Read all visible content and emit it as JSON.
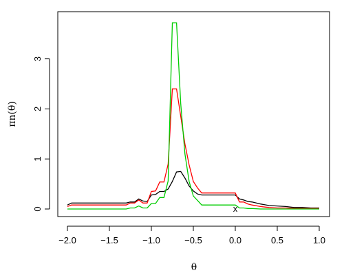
{
  "chart_data": {
    "type": "line",
    "title": "",
    "xlabel": "θ",
    "ylabel": "πn(θ)",
    "xlim": [
      -2.0,
      1.0
    ],
    "ylim": [
      0,
      3.75
    ],
    "xticks": [
      -2.0,
      -1.5,
      -1.0,
      -0.5,
      0.0,
      0.5,
      1.0
    ],
    "xtick_labels": [
      "−2.0",
      "−1.5",
      "−1.0",
      "−0.5",
      "0.0",
      "0.5",
      "1.0"
    ],
    "yticks": [
      0,
      1,
      2,
      3
    ],
    "ytick_labels": [
      "0",
      "1",
      "2",
      "3"
    ],
    "grid": false,
    "legend": "none",
    "marker": {
      "x": 0.0,
      "y": 0.0,
      "label": "x"
    },
    "series": [
      {
        "color": "#000000",
        "x": [
          -2.0,
          -1.95,
          -1.9,
          -1.8,
          -1.7,
          -1.6,
          -1.5,
          -1.4,
          -1.3,
          -1.25,
          -1.2,
          -1.15,
          -1.1,
          -1.05,
          -1.0,
          -0.95,
          -0.9,
          -0.85,
          -0.8,
          -0.75,
          -0.7,
          -0.65,
          -0.6,
          -0.55,
          -0.5,
          -0.45,
          -0.4,
          -0.35,
          -0.3,
          -0.2,
          -0.1,
          0.0,
          0.05,
          0.1,
          0.15,
          0.2,
          0.3,
          0.4,
          0.5,
          0.6,
          0.7,
          0.8,
          0.9,
          1.0
        ],
        "y": [
          0.08,
          0.12,
          0.12,
          0.12,
          0.12,
          0.12,
          0.12,
          0.12,
          0.12,
          0.14,
          0.14,
          0.2,
          0.16,
          0.15,
          0.28,
          0.29,
          0.35,
          0.35,
          0.4,
          0.55,
          0.74,
          0.75,
          0.62,
          0.46,
          0.36,
          0.3,
          0.28,
          0.28,
          0.28,
          0.28,
          0.28,
          0.28,
          0.2,
          0.18,
          0.15,
          0.14,
          0.1,
          0.07,
          0.06,
          0.05,
          0.03,
          0.03,
          0.02,
          0.02
        ]
      },
      {
        "color": "#ff0000",
        "x": [
          -2.0,
          -1.95,
          -1.9,
          -1.8,
          -1.7,
          -1.6,
          -1.5,
          -1.4,
          -1.3,
          -1.25,
          -1.2,
          -1.15,
          -1.1,
          -1.05,
          -1.0,
          -0.95,
          -0.9,
          -0.85,
          -0.8,
          -0.75,
          -0.7,
          -0.65,
          -0.6,
          -0.55,
          -0.5,
          -0.45,
          -0.4,
          -0.35,
          -0.3,
          -0.2,
          -0.1,
          0.0,
          0.05,
          0.1,
          0.15,
          0.2,
          0.3,
          0.4,
          0.5,
          0.6,
          0.7,
          0.8,
          0.9,
          1.0
        ],
        "y": [
          0.05,
          0.08,
          0.08,
          0.08,
          0.08,
          0.08,
          0.08,
          0.08,
          0.08,
          0.12,
          0.12,
          0.18,
          0.12,
          0.12,
          0.35,
          0.36,
          0.54,
          0.54,
          0.9,
          2.4,
          2.4,
          1.85,
          1.3,
          0.88,
          0.55,
          0.42,
          0.32,
          0.32,
          0.32,
          0.32,
          0.32,
          0.32,
          0.14,
          0.14,
          0.1,
          0.08,
          0.05,
          0.03,
          0.02,
          0.02,
          0.01,
          0.01,
          0.01,
          0.01
        ]
      },
      {
        "color": "#00cc00",
        "x": [
          -2.0,
          -1.95,
          -1.9,
          -1.8,
          -1.7,
          -1.6,
          -1.5,
          -1.4,
          -1.3,
          -1.25,
          -1.2,
          -1.15,
          -1.1,
          -1.05,
          -1.0,
          -0.95,
          -0.9,
          -0.85,
          -0.8,
          -0.75,
          -0.7,
          -0.65,
          -0.6,
          -0.55,
          -0.5,
          -0.45,
          -0.4,
          -0.35,
          -0.3,
          -0.2,
          -0.1,
          0.0,
          0.05,
          0.1,
          0.15,
          0.2,
          0.3,
          0.4,
          0.5,
          0.6,
          0.7,
          0.8,
          0.9,
          1.0
        ],
        "y": [
          0.0,
          0.0,
          0.0,
          0.0,
          0.0,
          0.0,
          0.0,
          0.0,
          0.0,
          0.02,
          0.02,
          0.06,
          0.02,
          0.02,
          0.11,
          0.11,
          0.23,
          0.23,
          0.56,
          3.72,
          3.72,
          2.1,
          1.1,
          0.55,
          0.26,
          0.17,
          0.08,
          0.08,
          0.08,
          0.08,
          0.08,
          0.08,
          0.02,
          0.02,
          0.01,
          0.01,
          0.0,
          0.0,
          0.0,
          0.0,
          0.0,
          0.0,
          0.0,
          0.0
        ]
      }
    ]
  }
}
